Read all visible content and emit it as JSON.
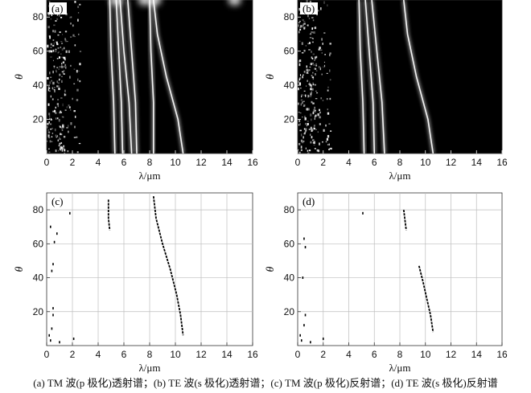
{
  "caption": "(a) TM 波(p 极化)透射谱；(b) TE 波(s 极化)透射谱；(c) TM 波(p 极化)反射谱；(d) TE 波(s 极化)反射谱",
  "chart_data": [
    {
      "type": "heatmap",
      "panel_label": "(a)",
      "background": "#000000",
      "mark_color": "#ffffff",
      "xlabel": "λ/μm",
      "ylabel": "θ",
      "xlim": [
        0,
        16
      ],
      "ylim": [
        0,
        90
      ],
      "xticks": [
        0,
        2,
        4,
        6,
        8,
        10,
        12,
        14,
        16
      ],
      "yticks": [
        20,
        40,
        60,
        80
      ],
      "grid": false,
      "speckle_region": {
        "x": [
          0,
          2.6
        ],
        "y": [
          0,
          90
        ]
      },
      "bands": [
        {
          "name": "",
          "points": [
            [
              5.3,
              0
            ],
            [
              5.2,
              30
            ],
            [
              5.0,
              60
            ],
            [
              4.9,
              90
            ]
          ]
        },
        {
          "name": "",
          "points": [
            [
              5.9,
              0
            ],
            [
              5.8,
              30
            ],
            [
              5.6,
              60
            ],
            [
              5.4,
              90
            ]
          ]
        },
        {
          "name": "",
          "points": [
            [
              6.6,
              0
            ],
            [
              6.4,
              30
            ],
            [
              6.0,
              60
            ],
            [
              5.7,
              90
            ]
          ]
        },
        {
          "name": "",
          "points": [
            [
              7.0,
              0
            ],
            [
              6.9,
              30
            ],
            [
              6.6,
              60
            ],
            [
              6.3,
              90
            ]
          ]
        },
        {
          "name": "",
          "points": [
            [
              8.3,
              0
            ],
            [
              8.3,
              30
            ],
            [
              8.1,
              60
            ],
            [
              8.0,
              90
            ]
          ]
        },
        {
          "name": "",
          "points": [
            [
              10.6,
              0
            ],
            [
              10.2,
              20
            ],
            [
              9.3,
              45
            ],
            [
              8.6,
              70
            ],
            [
              8.3,
              90
            ]
          ]
        }
      ],
      "hotspots": [
        [
          5.4,
          90
        ],
        [
          7.6,
          90
        ],
        [
          8.4,
          90
        ],
        [
          14.6,
          90
        ]
      ]
    },
    {
      "type": "heatmap",
      "panel_label": "(b)",
      "background": "#000000",
      "mark_color": "#ffffff",
      "xlabel": "λ/μm",
      "ylabel": "θ",
      "xlim": [
        0,
        16
      ],
      "ylim": [
        0,
        90
      ],
      "xticks": [
        0,
        2,
        4,
        6,
        8,
        10,
        12,
        14,
        16
      ],
      "yticks": [
        20,
        40,
        60,
        80
      ],
      "grid": false,
      "speckle_region": {
        "x": [
          0,
          2.6
        ],
        "y": [
          0,
          90
        ]
      },
      "bands": [
        {
          "name": "",
          "points": [
            [
              5.2,
              0
            ],
            [
              5.1,
              30
            ],
            [
              4.9,
              60
            ],
            [
              4.8,
              90
            ]
          ]
        },
        {
          "name": "",
          "points": [
            [
              6.0,
              0
            ],
            [
              5.9,
              30
            ],
            [
              5.6,
              60
            ],
            [
              5.3,
              90
            ]
          ]
        },
        {
          "name": "",
          "points": [
            [
              6.8,
              0
            ],
            [
              6.6,
              30
            ],
            [
              6.2,
              60
            ],
            [
              5.8,
              90
            ]
          ]
        },
        {
          "name": "",
          "points": [
            [
              10.6,
              0
            ],
            [
              10.2,
              20
            ],
            [
              9.3,
              45
            ],
            [
              8.6,
              70
            ],
            [
              8.3,
              90
            ]
          ]
        }
      ],
      "hotspots": []
    },
    {
      "type": "scatter",
      "panel_label": "(c)",
      "background": "#ffffff",
      "mark_color": "#000000",
      "xlabel": "λ/μm",
      "ylabel": "θ",
      "xlim": [
        0,
        16
      ],
      "ylim": [
        0,
        90
      ],
      "xticks": [
        0,
        2,
        4,
        6,
        8,
        10,
        12,
        14,
        16
      ],
      "yticks": [
        20,
        40,
        60,
        80
      ],
      "grid": true,
      "curves": [
        {
          "name": "",
          "points": [
            [
              8.3,
              88
            ],
            [
              8.5,
              75
            ],
            [
              9.0,
              60
            ],
            [
              9.6,
              45
            ],
            [
              10.1,
              30
            ],
            [
              10.4,
              18
            ],
            [
              10.6,
              6
            ]
          ]
        },
        {
          "name": "",
          "points": [
            [
              4.8,
              86
            ],
            [
              4.8,
              75
            ],
            [
              4.9,
              68
            ]
          ]
        }
      ],
      "scatter_points": [
        [
          0.2,
          6
        ],
        [
          0.3,
          3
        ],
        [
          0.4,
          10
        ],
        [
          0.5,
          18
        ],
        [
          0.5,
          22
        ],
        [
          0.4,
          44
        ],
        [
          0.5,
          48
        ],
        [
          0.6,
          61
        ],
        [
          0.8,
          66
        ],
        [
          1.8,
          78
        ],
        [
          0.3,
          70
        ],
        [
          1.0,
          2
        ],
        [
          2.1,
          4
        ]
      ]
    },
    {
      "type": "scatter",
      "panel_label": "(d)",
      "background": "#ffffff",
      "mark_color": "#000000",
      "xlabel": "λ/μm",
      "ylabel": "θ",
      "xlim": [
        0,
        16
      ],
      "ylim": [
        0,
        90
      ],
      "xticks": [
        0,
        2,
        4,
        6,
        8,
        10,
        12,
        14,
        16
      ],
      "yticks": [
        20,
        40,
        60,
        80
      ],
      "grid": true,
      "curves": [
        {
          "name": "",
          "points": [
            [
              9.5,
              47
            ],
            [
              9.8,
              38
            ],
            [
              10.1,
              28
            ],
            [
              10.4,
              18
            ],
            [
              10.6,
              8
            ]
          ]
        },
        {
          "name": "",
          "points": [
            [
              8.3,
              80
            ],
            [
              8.5,
              68
            ]
          ]
        }
      ],
      "scatter_points": [
        [
          5.1,
          78
        ],
        [
          0.2,
          6
        ],
        [
          0.3,
          3
        ],
        [
          0.5,
          12
        ],
        [
          0.6,
          18
        ],
        [
          0.4,
          40
        ],
        [
          0.6,
          58
        ],
        [
          0.5,
          63
        ],
        [
          1.0,
          2
        ],
        [
          2.0,
          4
        ]
      ]
    }
  ]
}
